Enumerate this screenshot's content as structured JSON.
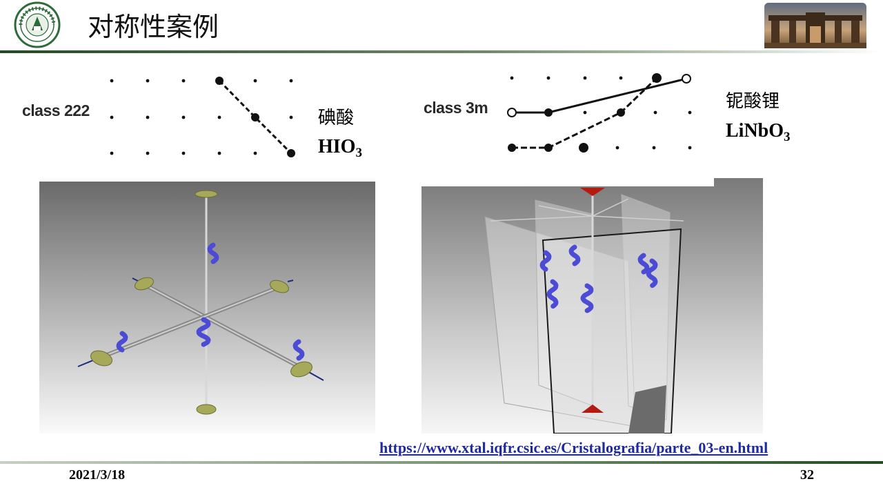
{
  "header": {
    "title": "对称性案例",
    "logo_icon": "university-seal-icon",
    "photo_icon": "campus-gate-photo-icon"
  },
  "panels": {
    "left_diagram": {
      "class_label": "class 222",
      "name_cn": "碘酸",
      "formula_main": "HIO",
      "formula_sub": "3"
    },
    "right_diagram": {
      "class_label": "class 3m",
      "name_cn": "铌酸锂",
      "formula_main": "LiNbO",
      "formula_sub": "3"
    },
    "left_render_icon": "rotation-axes-222-render-icon",
    "right_render_icon": "mirror-planes-3m-render-icon"
  },
  "footer": {
    "url": "https://www.xtal.iqfr.csic.es/Cristalografia/parte_03-en.html",
    "date": "2021/3/18",
    "page_number": "32"
  },
  "colors": {
    "accent_green": "#2e5b2e",
    "link_blue": "#1f2a9c",
    "helix_blue": "#4b4bd6",
    "disc_olive": "#a7a95a",
    "marker_red": "#b31a10"
  }
}
